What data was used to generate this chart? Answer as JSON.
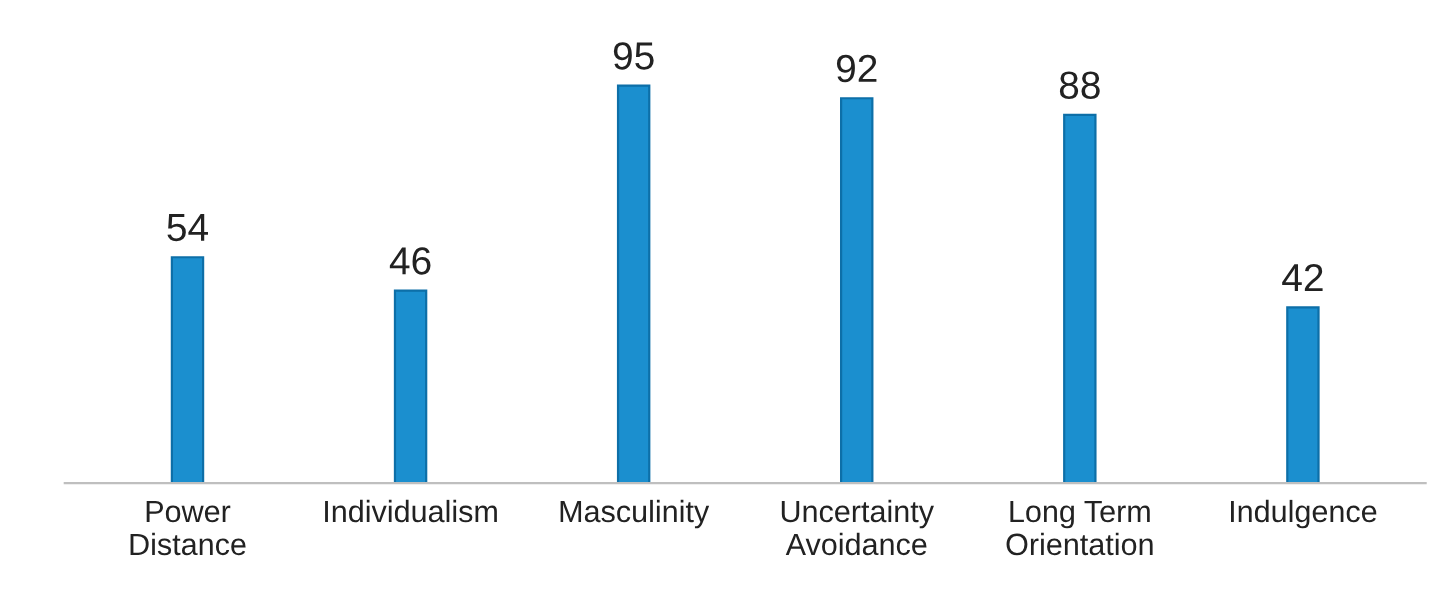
{
  "chart_data": {
    "type": "bar",
    "categories": [
      "Power\nDistance",
      "Individualism",
      "Masculinity",
      "Uncertainty\nAvoidance",
      "Long Term\nOrientation",
      "Indulgence"
    ],
    "values": [
      54,
      46,
      95,
      92,
      88,
      42
    ],
    "color": "#1b8fcf",
    "data_labels": true,
    "grid": false,
    "legend": false
  }
}
